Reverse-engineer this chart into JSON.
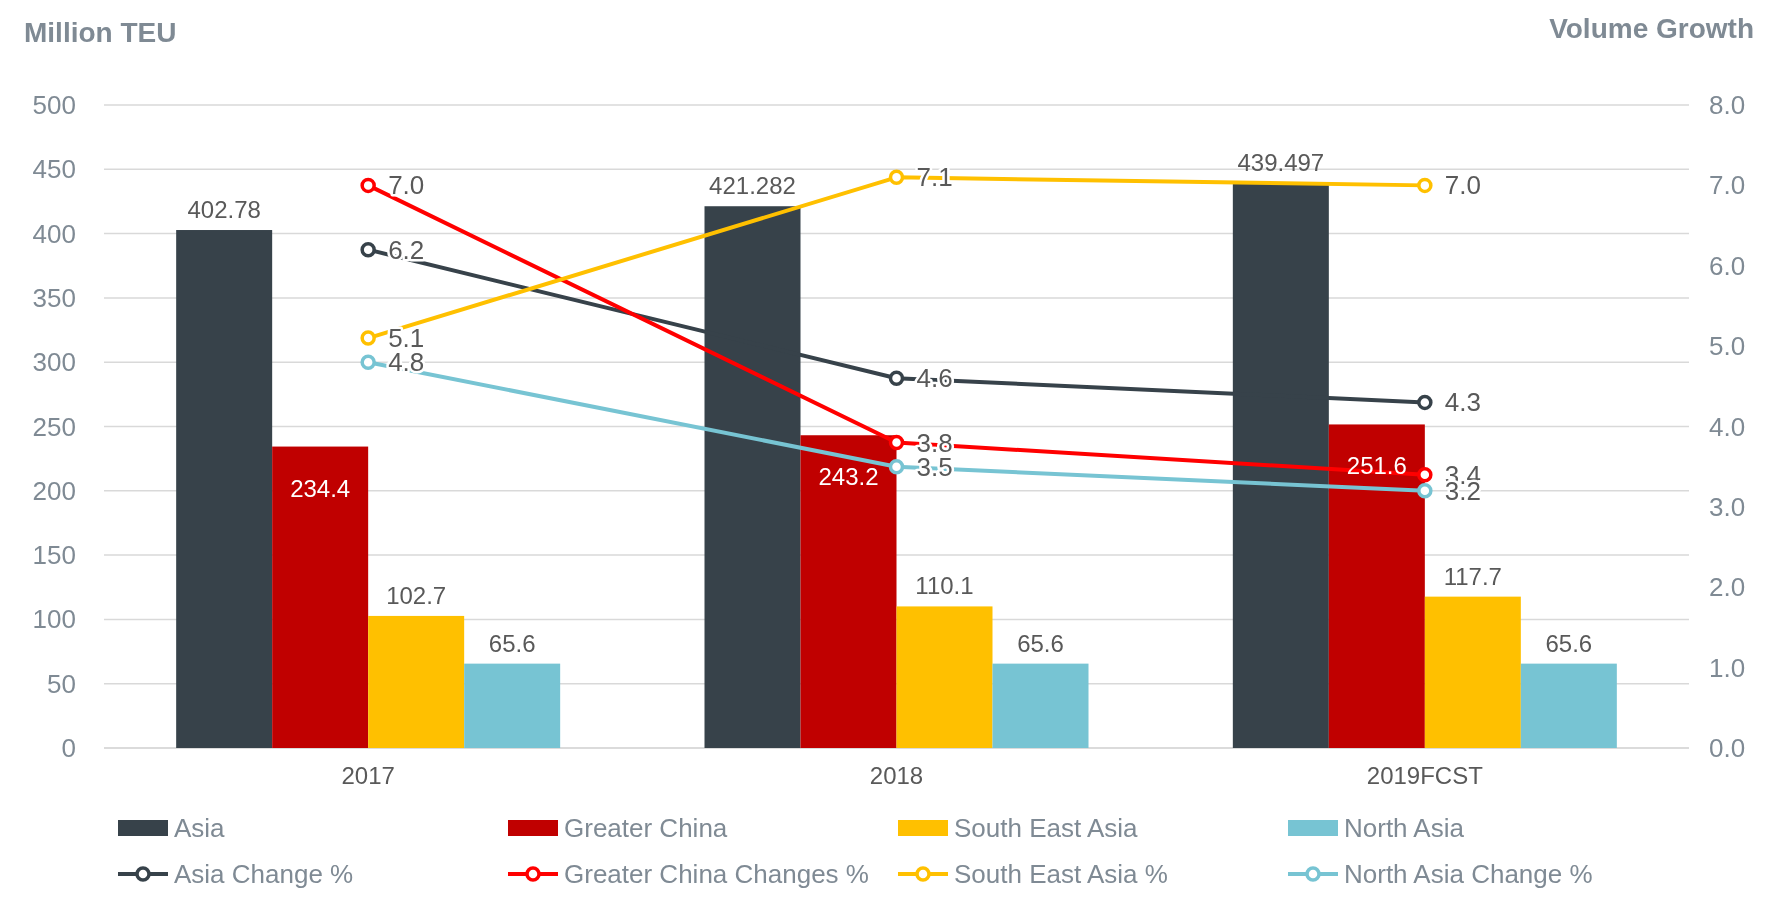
{
  "chart_data": {
    "type": "bar",
    "ylabel": "Million TEU",
    "y2label": "Volume Growth",
    "categories": [
      "2017",
      "2018",
      "2019FCST"
    ],
    "series": [
      {
        "name": "Asia",
        "color": "#37424a",
        "values": [
          402.78,
          421.282,
          439.497
        ]
      },
      {
        "name": "Greater China",
        "color": "#c00000",
        "values": [
          234.4,
          243.2,
          251.6
        ]
      },
      {
        "name": "South East Asia",
        "color": "#ffc000",
        "values": [
          102.7,
          110.1,
          117.7
        ]
      },
      {
        "name": "North Asia",
        "color": "#77c4d3",
        "values": [
          65.6,
          65.6,
          65.6
        ]
      },
      {
        "name": "Asia Change %",
        "type": "line",
        "axis": "y2",
        "color": "#37424a",
        "values": [
          6.2,
          4.6,
          4.3
        ],
        "value_labels": [
          "6.2",
          "4.6",
          "4.3"
        ]
      },
      {
        "name": "Greater China Changes %",
        "type": "line",
        "axis": "y2",
        "color": "#ff0000",
        "values": [
          7.0,
          3.8,
          3.4
        ],
        "value_labels": [
          "7.0",
          "3.8",
          "3.4"
        ]
      },
      {
        "name": "South East Asia %",
        "type": "line",
        "axis": "y2",
        "color": "#ffc000",
        "values": [
          5.1,
          7.1,
          7.0
        ],
        "value_labels": [
          "5.1",
          "7.1",
          "7.0"
        ]
      },
      {
        "name": "North Asia Change %",
        "type": "line",
        "axis": "y2",
        "color": "#77c4d3",
        "values": [
          4.8,
          3.5,
          3.2
        ],
        "value_labels": [
          "4.8",
          "3.5",
          "3.2"
        ]
      }
    ],
    "ylim": [
      0,
      500
    ],
    "yticks": [
      0,
      50,
      100,
      150,
      200,
      250,
      300,
      350,
      400,
      450,
      500
    ],
    "y2lim": [
      0,
      8
    ],
    "y2ticks": [
      {
        "value": 0,
        "label": "0.0"
      },
      {
        "value": 1,
        "label": "1.0"
      },
      {
        "value": 2,
        "label": "2.0"
      },
      {
        "value": 3,
        "label": "3.0"
      },
      {
        "value": 4,
        "label": "4.0"
      },
      {
        "value": 5,
        "label": "5.0"
      },
      {
        "value": 6,
        "label": "6.0"
      },
      {
        "value": 7,
        "label": "7.0"
      },
      {
        "value": 8,
        "label": "8.0"
      }
    ],
    "grid": "y",
    "legend": "bottom",
    "marker": "circle",
    "line_style": "solid",
    "data_labels": true
  }
}
